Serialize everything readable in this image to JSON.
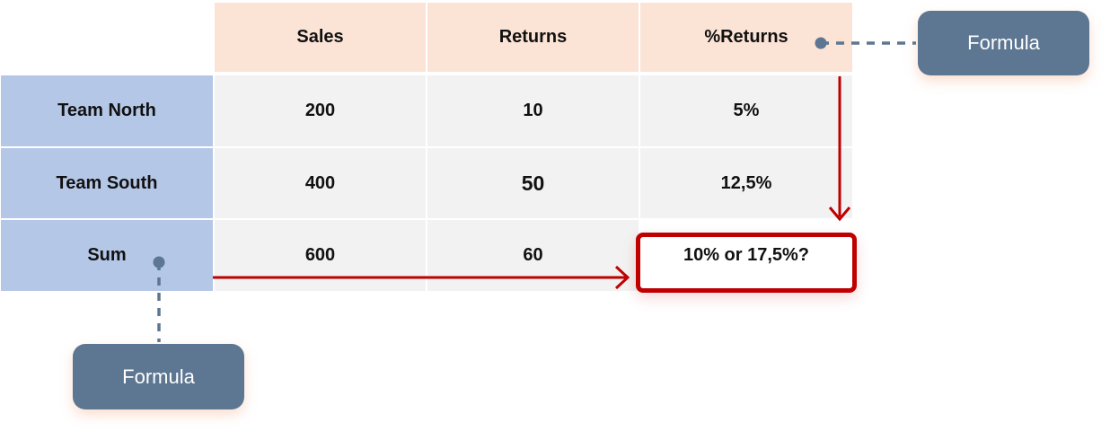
{
  "table": {
    "columns": [
      "Sales",
      "Returns",
      "%Returns"
    ],
    "rows": [
      {
        "label": "Team North",
        "sales": "200",
        "returns": "10",
        "pct": "5%"
      },
      {
        "label": "Team South",
        "sales": "400",
        "returns": "50",
        "pct": "12,5%"
      },
      {
        "label": "Sum",
        "sales": "600",
        "returns": "60",
        "pct": "10% or 17,5%?"
      }
    ]
  },
  "callouts": {
    "top_right": "Formula",
    "bottom_left": "Formula"
  },
  "colors": {
    "header_bg": "#fbe3d6",
    "row_header_bg": "#b4c7e7",
    "cell_bg": "#f2f2f2",
    "callout_bg": "#5d7691",
    "arrow_red": "#c00000"
  }
}
